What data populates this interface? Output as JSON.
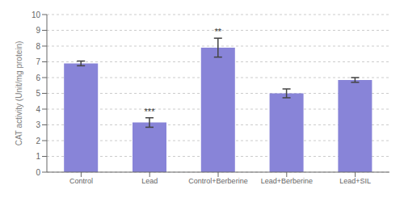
{
  "chart_data": {
    "type": "bar",
    "categories": [
      "Control",
      "Lead",
      "Control+Berberine",
      "Lead+Berberine",
      "Lead+SIL"
    ],
    "values": [
      6.9,
      3.15,
      7.9,
      5.0,
      5.85
    ],
    "errors": [
      0.15,
      0.3,
      0.6,
      0.28,
      0.15
    ],
    "annotations": [
      null,
      "***",
      "**",
      null,
      null
    ],
    "ylabel": "CAT activity (Unit/mg protein)",
    "ylim": [
      0,
      10
    ],
    "yticks": [
      0,
      1,
      2,
      3,
      4,
      5,
      6,
      7,
      8,
      9,
      10
    ],
    "grid": true
  }
}
